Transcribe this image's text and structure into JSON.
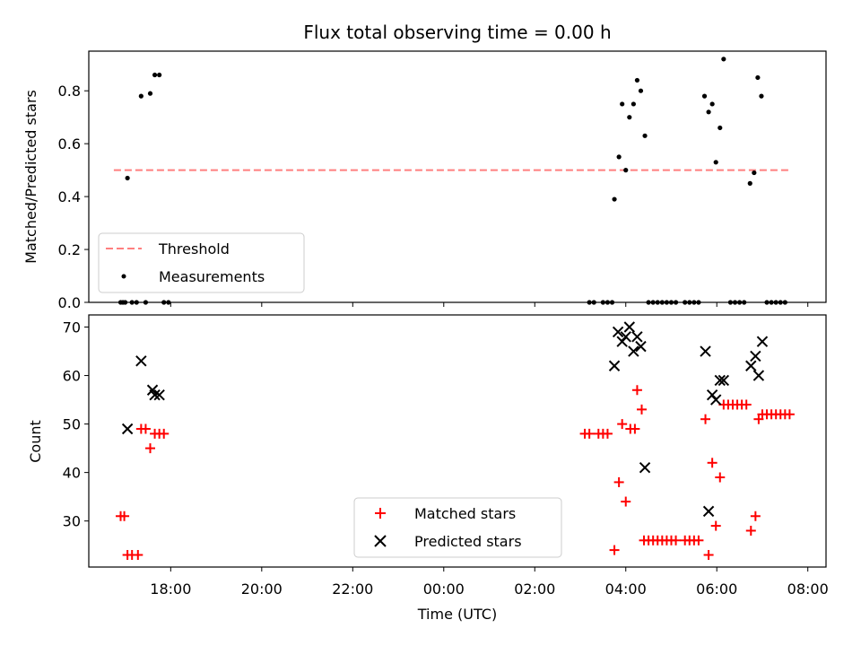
{
  "chart_data": [
    {
      "type": "scatter",
      "title": "Flux total observing time = 0.00 h",
      "xlabel": "",
      "ylabel": "Matched/Predicted stars",
      "xlim_hours": [
        16.2,
        32.4
      ],
      "ylim": [
        0,
        0.95
      ],
      "yticks": [
        0.0,
        0.2,
        0.4,
        0.6,
        0.8
      ],
      "ytick_labels": [
        "0.0",
        "0.2",
        "0.4",
        "0.6",
        "0.8"
      ],
      "legend": {
        "placement": "lower-left",
        "entries": [
          "Threshold",
          "Measurements"
        ]
      },
      "series": [
        {
          "name": "Threshold",
          "style": "dashed-line",
          "color": "#ff7f7f",
          "x": [
            16.75,
            31.58
          ],
          "y": [
            0.5,
            0.5
          ]
        },
        {
          "name": "Measurements",
          "style": "dot",
          "color": "#000000",
          "points": [
            [
              16.9,
              0
            ],
            [
              16.95,
              0
            ],
            [
              17.0,
              0
            ],
            [
              17.05,
              0.47
            ],
            [
              17.15,
              0
            ],
            [
              17.25,
              0
            ],
            [
              17.35,
              0.78
            ],
            [
              17.45,
              0
            ],
            [
              17.55,
              0.79
            ],
            [
              17.65,
              0.86
            ],
            [
              17.75,
              0.86
            ],
            [
              17.85,
              0
            ],
            [
              17.95,
              0
            ],
            [
              27.2,
              0
            ],
            [
              27.3,
              0
            ],
            [
              27.5,
              0
            ],
            [
              27.6,
              0
            ],
            [
              27.7,
              0
            ],
            [
              27.75,
              0.39
            ],
            [
              27.85,
              0.55
            ],
            [
              27.92,
              0.75
            ],
            [
              28.0,
              0.5
            ],
            [
              28.08,
              0.7
            ],
            [
              28.17,
              0.75
            ],
            [
              28.25,
              0.84
            ],
            [
              28.33,
              0.8
            ],
            [
              28.42,
              0.63
            ],
            [
              28.5,
              0
            ],
            [
              28.6,
              0
            ],
            [
              28.7,
              0
            ],
            [
              28.8,
              0
            ],
            [
              28.9,
              0
            ],
            [
              29.0,
              0
            ],
            [
              29.1,
              0
            ],
            [
              29.3,
              0
            ],
            [
              29.4,
              0
            ],
            [
              29.5,
              0
            ],
            [
              29.6,
              0
            ],
            [
              29.73,
              0.78
            ],
            [
              29.82,
              0.72
            ],
            [
              29.9,
              0.75
            ],
            [
              29.98,
              0.53
            ],
            [
              30.07,
              0.66
            ],
            [
              30.15,
              0.92
            ],
            [
              30.3,
              0
            ],
            [
              30.4,
              0
            ],
            [
              30.5,
              0
            ],
            [
              30.6,
              0
            ],
            [
              30.73,
              0.45
            ],
            [
              30.82,
              0.49
            ],
            [
              30.9,
              0.85
            ],
            [
              30.98,
              0.78
            ],
            [
              31.1,
              0
            ],
            [
              31.2,
              0
            ],
            [
              31.3,
              0
            ],
            [
              31.4,
              0
            ],
            [
              31.5,
              0
            ]
          ]
        }
      ]
    },
    {
      "type": "scatter",
      "title": "",
      "xlabel": "Time (UTC)",
      "ylabel": "Count",
      "xlim_hours": [
        16.2,
        32.4
      ],
      "ylim": [
        20.5,
        72.5
      ],
      "yticks": [
        30,
        40,
        50,
        60,
        70
      ],
      "ytick_labels": [
        "30",
        "40",
        "50",
        "60",
        "70"
      ],
      "xticks_hours": [
        18,
        20,
        22,
        24,
        26,
        28,
        30,
        32
      ],
      "xtick_labels": [
        "18:00",
        "20:00",
        "22:00",
        "00:00",
        "02:00",
        "04:00",
        "06:00",
        "08:00"
      ],
      "legend": {
        "placement": "lower-center",
        "entries": [
          "Matched stars",
          "Predicted stars"
        ]
      },
      "series": [
        {
          "name": "Matched stars",
          "style": "plus",
          "color": "#ff0000",
          "points": [
            [
              16.9,
              31
            ],
            [
              16.98,
              31
            ],
            [
              17.05,
              23
            ],
            [
              17.15,
              23
            ],
            [
              17.28,
              23
            ],
            [
              17.35,
              49
            ],
            [
              17.45,
              49
            ],
            [
              17.55,
              45
            ],
            [
              17.65,
              48
            ],
            [
              17.75,
              48
            ],
            [
              17.85,
              48
            ],
            [
              27.1,
              48
            ],
            [
              27.2,
              48
            ],
            [
              27.4,
              48
            ],
            [
              27.5,
              48
            ],
            [
              27.6,
              48
            ],
            [
              27.75,
              24
            ],
            [
              27.85,
              38
            ],
            [
              27.92,
              50
            ],
            [
              28.0,
              34
            ],
            [
              28.1,
              49
            ],
            [
              28.2,
              49
            ],
            [
              28.25,
              57
            ],
            [
              28.35,
              53
            ],
            [
              28.4,
              26
            ],
            [
              28.5,
              26
            ],
            [
              28.6,
              26
            ],
            [
              28.7,
              26
            ],
            [
              28.8,
              26
            ],
            [
              28.9,
              26
            ],
            [
              29.0,
              26
            ],
            [
              29.1,
              26
            ],
            [
              29.3,
              26
            ],
            [
              29.4,
              26
            ],
            [
              29.5,
              26
            ],
            [
              29.6,
              26
            ],
            [
              29.75,
              51
            ],
            [
              29.82,
              23
            ],
            [
              29.9,
              42
            ],
            [
              29.98,
              29
            ],
            [
              30.07,
              39
            ],
            [
              30.15,
              54
            ],
            [
              30.25,
              54
            ],
            [
              30.35,
              54
            ],
            [
              30.45,
              54
            ],
            [
              30.55,
              54
            ],
            [
              30.65,
              54
            ],
            [
              30.75,
              28
            ],
            [
              30.85,
              31
            ],
            [
              30.92,
              51
            ],
            [
              31.0,
              52
            ],
            [
              31.1,
              52
            ],
            [
              31.2,
              52
            ],
            [
              31.3,
              52
            ],
            [
              31.4,
              52
            ],
            [
              31.5,
              52
            ],
            [
              31.6,
              52
            ]
          ]
        },
        {
          "name": "Predicted stars",
          "style": "x",
          "color": "#000000",
          "points": [
            [
              17.05,
              49
            ],
            [
              17.35,
              63
            ],
            [
              17.6,
              57
            ],
            [
              17.65,
              56
            ],
            [
              17.75,
              56
            ],
            [
              27.75,
              62
            ],
            [
              27.83,
              69
            ],
            [
              27.92,
              67
            ],
            [
              28.0,
              68
            ],
            [
              28.08,
              70
            ],
            [
              28.17,
              65
            ],
            [
              28.25,
              68
            ],
            [
              28.33,
              66
            ],
            [
              28.42,
              41
            ],
            [
              29.75,
              65
            ],
            [
              29.82,
              32
            ],
            [
              29.9,
              56
            ],
            [
              29.98,
              55
            ],
            [
              30.07,
              59
            ],
            [
              30.15,
              59
            ],
            [
              30.75,
              62
            ],
            [
              30.85,
              64
            ],
            [
              30.92,
              60
            ],
            [
              31.0,
              67
            ]
          ]
        }
      ]
    }
  ]
}
